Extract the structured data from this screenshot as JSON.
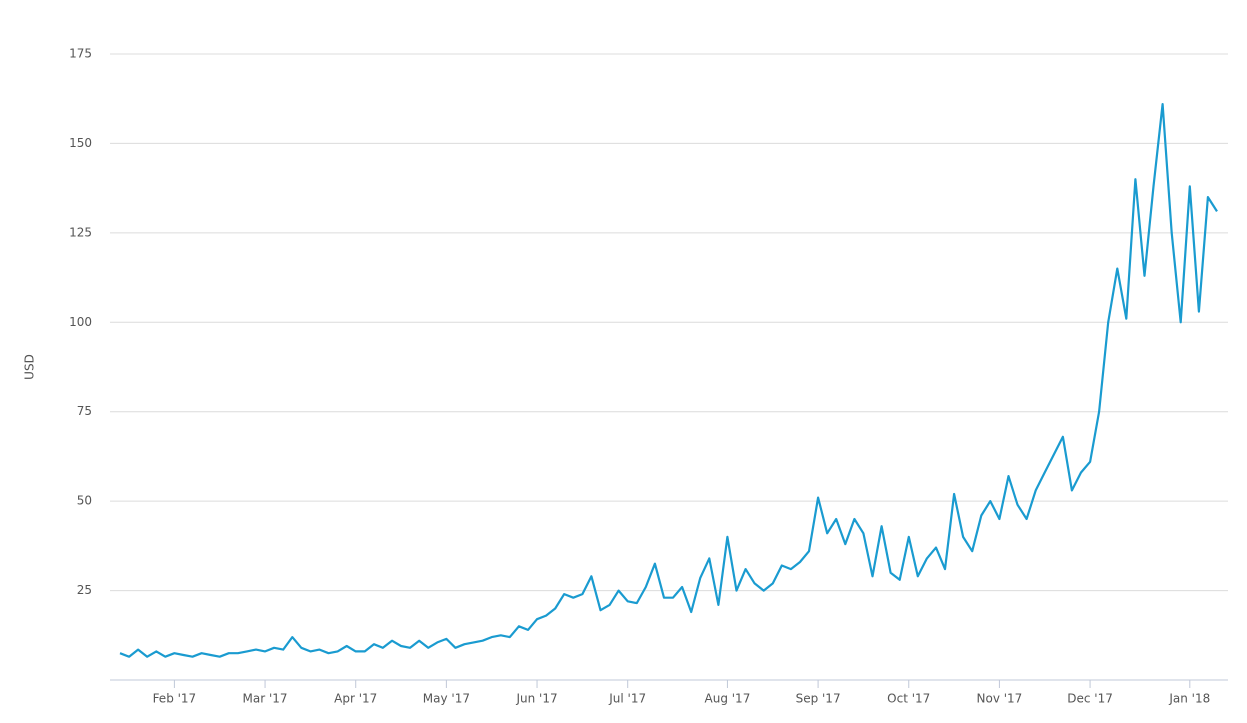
{
  "chart_data": {
    "type": "line",
    "y_label": "USD",
    "color": "#1a9bd0",
    "grid": true,
    "ylim": [
      0,
      175
    ],
    "yticks": [
      25,
      50,
      75,
      100,
      125,
      150,
      175
    ],
    "categories": [
      null,
      null,
      null,
      null,
      null,
      null,
      "Feb '17",
      null,
      null,
      null,
      null,
      null,
      null,
      null,
      null,
      null,
      "Mar '17",
      null,
      null,
      null,
      null,
      null,
      null,
      null,
      null,
      null,
      "Apr '17",
      null,
      null,
      null,
      null,
      null,
      null,
      null,
      null,
      null,
      "May '17",
      null,
      null,
      null,
      null,
      null,
      null,
      null,
      null,
      null,
      "Jun '17",
      null,
      null,
      null,
      null,
      null,
      null,
      null,
      null,
      null,
      "Jul '17",
      null,
      null,
      null,
      null,
      null,
      null,
      null,
      null,
      null,
      null,
      "Aug '17",
      null,
      null,
      null,
      null,
      null,
      null,
      null,
      null,
      null,
      "Sep '17",
      null,
      null,
      null,
      null,
      null,
      null,
      null,
      null,
      null,
      "Oct '17",
      null,
      null,
      null,
      null,
      null,
      null,
      null,
      null,
      null,
      "Nov '17",
      null,
      null,
      null,
      null,
      null,
      null,
      null,
      null,
      null,
      "Dec '17",
      null,
      null,
      null,
      null,
      null,
      null,
      null,
      null,
      null,
      null,
      "Jan '18",
      null,
      null,
      null
    ],
    "values": [
      7.5,
      6.5,
      8.5,
      6.5,
      8,
      6.5,
      7.5,
      7,
      6.5,
      7.5,
      7,
      6.5,
      7.5,
      7.5,
      8,
      8.5,
      8,
      9,
      8.5,
      12,
      9,
      8,
      8.5,
      7.5,
      8,
      9.5,
      8,
      8,
      10,
      9,
      11,
      9.5,
      9,
      11,
      9,
      10.5,
      11.5,
      9,
      10,
      10.5,
      11,
      12,
      12.5,
      12,
      15,
      14,
      17,
      18,
      20,
      24,
      23,
      24,
      29,
      19.5,
      21,
      25,
      22,
      21.5,
      26,
      32.5,
      23,
      23,
      26,
      19,
      28.5,
      34,
      21,
      40,
      25,
      31,
      27,
      25,
      27,
      32,
      31,
      33,
      36,
      51,
      41,
      45,
      38,
      45,
      41,
      29,
      43,
      30,
      28,
      40,
      29,
      34,
      37,
      31,
      52,
      40,
      36,
      46,
      50,
      45,
      57,
      49,
      45,
      53,
      58,
      63,
      68,
      53,
      58,
      61,
      75,
      100,
      115,
      101,
      140,
      113,
      138,
      161,
      125,
      100,
      138,
      103,
      135,
      131
    ]
  }
}
